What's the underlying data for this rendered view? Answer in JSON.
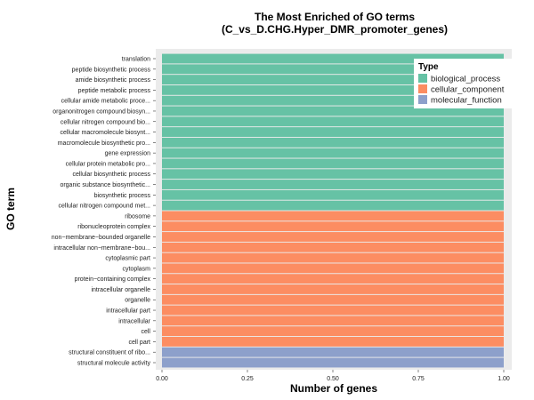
{
  "chart_data": {
    "type": "bar",
    "orientation": "horizontal",
    "title": [
      "The Most Enriched of GO terms",
      "(C_vs_D.CHG.Hyper_DMR_promoter_genes)"
    ],
    "xlabel": "Number of genes",
    "ylabel": "GO term",
    "xlim": [
      0,
      1
    ],
    "xticks": [
      "0.00",
      "0.25",
      "0.50",
      "0.75",
      "1.00"
    ],
    "legend": {
      "title": "Type",
      "position": "top-right",
      "entries": [
        {
          "label": "biological_process",
          "color": "#66c2a5"
        },
        {
          "label": "cellular_component",
          "color": "#fc8d62"
        },
        {
          "label": "molecular_function",
          "color": "#8da0cb"
        }
      ]
    },
    "categories": [
      "translation",
      "peptide biosynthetic process",
      "amide biosynthetic process",
      "peptide metabolic process",
      "cellular amide metabolic proce...",
      "organonitrogen compound biosyn...",
      "cellular nitrogen compound bio...",
      "cellular macromolecule biosynt...",
      "macromolecule biosynthetic pro...",
      "gene expression",
      "cellular protein metabolic pro...",
      "cellular biosynthetic process",
      "organic substance biosynthetic...",
      "biosynthetic process",
      "cellular nitrogen compound met...",
      "ribosome",
      "ribonucleoprotein complex",
      "non−membrane−bounded organelle",
      "intracellular non−membrane−bou...",
      "cytoplasmic part",
      "cytoplasm",
      "protein−containing complex",
      "intracellular organelle",
      "organelle",
      "intracellular part",
      "intracellular",
      "cell",
      "cell part",
      "structural constituent of ribo...",
      "structural molecule activity"
    ],
    "types": [
      "biological_process",
      "biological_process",
      "biological_process",
      "biological_process",
      "biological_process",
      "biological_process",
      "biological_process",
      "biological_process",
      "biological_process",
      "biological_process",
      "biological_process",
      "biological_process",
      "biological_process",
      "biological_process",
      "biological_process",
      "cellular_component",
      "cellular_component",
      "cellular_component",
      "cellular_component",
      "cellular_component",
      "cellular_component",
      "cellular_component",
      "cellular_component",
      "cellular_component",
      "cellular_component",
      "cellular_component",
      "cellular_component",
      "cellular_component",
      "molecular_function",
      "molecular_function"
    ],
    "values": [
      1,
      1,
      1,
      1,
      1,
      1,
      1,
      1,
      1,
      1,
      1,
      1,
      1,
      1,
      1,
      1,
      1,
      1,
      1,
      1,
      1,
      1,
      1,
      1,
      1,
      1,
      1,
      1,
      1,
      1
    ]
  }
}
